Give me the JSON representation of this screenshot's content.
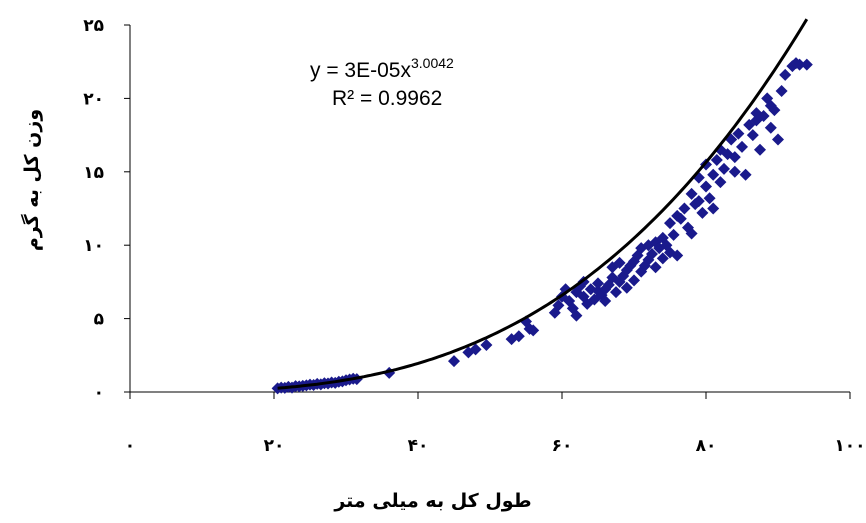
{
  "chart_data": {
    "type": "scatter",
    "xlabel": "طول کل به میلی متر",
    "ylabel": "وزن کل به گرم",
    "xlim": [
      0,
      100
    ],
    "ylim": [
      0,
      25
    ],
    "x_ticks": [
      {
        "value": 0,
        "label": "۰"
      },
      {
        "value": 20,
        "label": "۲۰"
      },
      {
        "value": 40,
        "label": "۴۰"
      },
      {
        "value": 60,
        "label": "۶۰"
      },
      {
        "value": 80,
        "label": "۸۰"
      },
      {
        "value": 100,
        "label": "۱۰۰"
      }
    ],
    "y_ticks": [
      {
        "value": 0,
        "label": "۰"
      },
      {
        "value": 5,
        "label": "۵"
      },
      {
        "value": 10,
        "label": "۱۰"
      },
      {
        "value": 15,
        "label": "۱۵"
      },
      {
        "value": 20,
        "label": "۲۰"
      },
      {
        "value": 25,
        "label": "۲۵"
      }
    ],
    "grid": false,
    "marker": {
      "shape": "diamond",
      "color": "#1a1a8c"
    },
    "trendline": {
      "type": "power",
      "coefficient": 3e-05,
      "exponent": 3.0042,
      "equation_prefix": "y = 3E-05x",
      "equation_exponent": "3.0042",
      "r_squared_label": "R² = 0.9962",
      "color": "#000000"
    },
    "points": [
      [
        20.5,
        0.25
      ],
      [
        21,
        0.3
      ],
      [
        21.5,
        0.28
      ],
      [
        22,
        0.35
      ],
      [
        22.5,
        0.3
      ],
      [
        23,
        0.4
      ],
      [
        23.5,
        0.38
      ],
      [
        24,
        0.42
      ],
      [
        24.5,
        0.45
      ],
      [
        25,
        0.5
      ],
      [
        25.5,
        0.48
      ],
      [
        26,
        0.55
      ],
      [
        26.5,
        0.52
      ],
      [
        27,
        0.6
      ],
      [
        27.5,
        0.58
      ],
      [
        28,
        0.65
      ],
      [
        28.5,
        0.62
      ],
      [
        29,
        0.7
      ],
      [
        29.5,
        0.72
      ],
      [
        30,
        0.8
      ],
      [
        30.5,
        0.85
      ],
      [
        31,
        0.9
      ],
      [
        31.5,
        0.88
      ],
      [
        36,
        1.3
      ],
      [
        45,
        2.1
      ],
      [
        47,
        2.7
      ],
      [
        48,
        2.9
      ],
      [
        49.5,
        3.2
      ],
      [
        53,
        3.6
      ],
      [
        54,
        3.8
      ],
      [
        55,
        4.8
      ],
      [
        55.5,
        4.3
      ],
      [
        56,
        4.2
      ],
      [
        59,
        5.4
      ],
      [
        59.5,
        5.9
      ],
      [
        60,
        6.5
      ],
      [
        60.5,
        7.0
      ],
      [
        61,
        6.2
      ],
      [
        61.5,
        5.7
      ],
      [
        62,
        5.2
      ],
      [
        62,
        6.8
      ],
      [
        62.5,
        7.2
      ],
      [
        63,
        6.5
      ],
      [
        63,
        7.5
      ],
      [
        63.5,
        6.0
      ],
      [
        64,
        7.0
      ],
      [
        64.5,
        6.3
      ],
      [
        65,
        6.9
      ],
      [
        65,
        7.4
      ],
      [
        65.5,
        6.6
      ],
      [
        66,
        7.0
      ],
      [
        66,
        6.2
      ],
      [
        66.5,
        7.3
      ],
      [
        67,
        7.8
      ],
      [
        67,
        8.5
      ],
      [
        67.5,
        6.8
      ],
      [
        68,
        7.5
      ],
      [
        68,
        8.8
      ],
      [
        68.5,
        7.9
      ],
      [
        69,
        8.3
      ],
      [
        69,
        7.1
      ],
      [
        69.5,
        8.6
      ],
      [
        70,
        8.9
      ],
      [
        70,
        7.6
      ],
      [
        70.5,
        9.3
      ],
      [
        71,
        8.2
      ],
      [
        71,
        9.8
      ],
      [
        71.5,
        8.6
      ],
      [
        72,
        9.0
      ],
      [
        72,
        10.0
      ],
      [
        72.5,
        9.4
      ],
      [
        73,
        8.5
      ],
      [
        73,
        10.2
      ],
      [
        73.5,
        9.8
      ],
      [
        74,
        9.1
      ],
      [
        74,
        10.5
      ],
      [
        74.5,
        10.0
      ],
      [
        75,
        9.5
      ],
      [
        75,
        11.5
      ],
      [
        75.5,
        10.7
      ],
      [
        76,
        12.0
      ],
      [
        76,
        9.3
      ],
      [
        76.5,
        11.8
      ],
      [
        77,
        12.5
      ],
      [
        77.5,
        11.2
      ],
      [
        78,
        10.8
      ],
      [
        78,
        13.5
      ],
      [
        78.5,
        12.8
      ],
      [
        79,
        13.0
      ],
      [
        79,
        14.6
      ],
      [
        79.5,
        12.2
      ],
      [
        80,
        14.0
      ],
      [
        80,
        15.5
      ],
      [
        80.5,
        13.2
      ],
      [
        81,
        14.8
      ],
      [
        81,
        12.5
      ],
      [
        81.5,
        15.8
      ],
      [
        82,
        14.3
      ],
      [
        82,
        16.5
      ],
      [
        82.5,
        15.2
      ],
      [
        83,
        16.2
      ],
      [
        83.5,
        17.2
      ],
      [
        84,
        16.0
      ],
      [
        84,
        15.0
      ],
      [
        84.5,
        17.6
      ],
      [
        85,
        16.7
      ],
      [
        85.5,
        14.8
      ],
      [
        86,
        18.2
      ],
      [
        86.5,
        17.5
      ],
      [
        87,
        18.5
      ],
      [
        87,
        19.0
      ],
      [
        87.5,
        16.5
      ],
      [
        88,
        18.8
      ],
      [
        88.5,
        20.0
      ],
      [
        89,
        18.0
      ],
      [
        89,
        19.5
      ],
      [
        89.5,
        19.2
      ],
      [
        90,
        17.2
      ],
      [
        90.5,
        20.5
      ],
      [
        91,
        21.6
      ],
      [
        92,
        22.2
      ],
      [
        92.5,
        22.4
      ],
      [
        93,
        22.3
      ],
      [
        94,
        22.3
      ]
    ]
  }
}
